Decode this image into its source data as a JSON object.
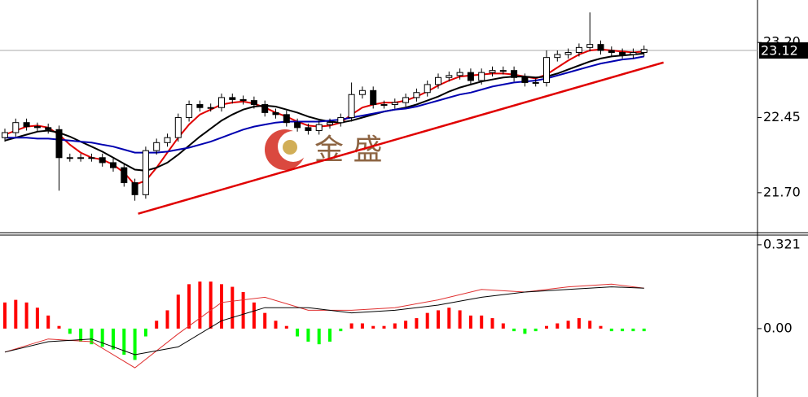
{
  "chart_data": [
    {
      "type": "candlestick",
      "watermark": "金 盛",
      "open": [
        22.25,
        22.3,
        22.4,
        22.36,
        22.35,
        22.33,
        22.05,
        22.05,
        22.05,
        22.05,
        22.0,
        21.95,
        21.8,
        21.68,
        22.12,
        22.2,
        22.25,
        22.45,
        22.58,
        22.55,
        22.55,
        22.65,
        22.63,
        22.62,
        22.58,
        22.5,
        22.48,
        22.4,
        22.35,
        22.32,
        22.38,
        22.4,
        22.45,
        22.68,
        22.72,
        22.58,
        22.58,
        22.6,
        22.65,
        22.7,
        22.78,
        22.85,
        22.87,
        22.9,
        22.82,
        22.9,
        22.92,
        22.92,
        22.85,
        22.8,
        22.8,
        23.05,
        23.08,
        23.1,
        23.15,
        23.18,
        23.12,
        23.1,
        23.08,
        23.1
      ],
      "high": [
        22.34,
        22.44,
        22.44,
        22.4,
        22.39,
        22.37,
        22.09,
        22.09,
        22.09,
        22.09,
        22.04,
        21.99,
        21.84,
        22.16,
        22.24,
        22.29,
        22.49,
        22.62,
        22.62,
        22.59,
        22.69,
        22.69,
        22.67,
        22.66,
        22.62,
        22.54,
        22.52,
        22.44,
        22.39,
        22.42,
        22.44,
        22.49,
        22.8,
        22.76,
        22.76,
        22.62,
        22.64,
        22.69,
        22.74,
        22.82,
        22.89,
        22.91,
        22.94,
        22.94,
        22.94,
        22.96,
        22.96,
        22.96,
        22.89,
        22.84,
        23.12,
        23.12,
        23.14,
        23.19,
        23.5,
        23.22,
        23.16,
        23.14,
        23.14,
        23.17
      ],
      "low": [
        22.21,
        22.26,
        22.32,
        22.31,
        22.29,
        21.72,
        22.01,
        22.01,
        22.01,
        21.96,
        21.91,
        21.76,
        21.62,
        21.64,
        22.08,
        22.16,
        22.21,
        22.41,
        22.51,
        22.51,
        22.51,
        22.59,
        22.58,
        22.54,
        22.46,
        22.44,
        22.36,
        22.31,
        22.28,
        22.28,
        22.34,
        22.36,
        22.41,
        22.64,
        22.54,
        22.54,
        22.54,
        22.56,
        22.61,
        22.66,
        22.74,
        22.81,
        22.83,
        22.78,
        22.78,
        22.86,
        22.88,
        22.81,
        22.76,
        22.76,
        22.76,
        23.01,
        23.04,
        23.06,
        23.11,
        23.08,
        23.06,
        23.04,
        23.04,
        23.06
      ],
      "close": [
        22.3,
        22.4,
        22.36,
        22.35,
        22.33,
        22.05,
        22.05,
        22.05,
        22.05,
        22.0,
        21.95,
        21.8,
        21.68,
        22.12,
        22.2,
        22.25,
        22.45,
        22.58,
        22.55,
        22.55,
        22.65,
        22.63,
        22.62,
        22.58,
        22.5,
        22.48,
        22.4,
        22.35,
        22.32,
        22.38,
        22.4,
        22.45,
        22.68,
        22.72,
        22.58,
        22.58,
        22.6,
        22.65,
        22.7,
        22.78,
        22.85,
        22.87,
        22.9,
        22.82,
        22.9,
        22.92,
        22.92,
        22.85,
        22.8,
        22.8,
        23.05,
        23.08,
        23.1,
        23.15,
        23.18,
        23.12,
        23.1,
        23.08,
        23.1,
        23.13
      ],
      "lines": [
        {
          "color": "#e00000",
          "values": [
            22.28,
            22.32,
            22.36,
            22.37,
            22.35,
            22.28,
            22.18,
            22.1,
            22.05,
            22.03,
            21.98,
            21.9,
            21.78,
            21.82,
            21.95,
            22.1,
            22.25,
            22.38,
            22.48,
            22.53,
            22.58,
            22.6,
            22.61,
            22.59,
            22.55,
            22.5,
            22.46,
            22.41,
            22.37,
            22.36,
            22.37,
            22.4,
            22.48,
            22.55,
            22.58,
            22.6,
            22.6,
            22.62,
            22.66,
            22.71,
            22.77,
            22.82,
            22.86,
            22.87,
            22.88,
            22.89,
            22.89,
            22.88,
            22.86,
            22.84,
            22.88,
            22.95,
            23.02,
            23.08,
            23.12,
            23.13,
            23.12,
            23.11,
            23.1,
            23.11
          ]
        },
        {
          "color": "#000000",
          "values": [
            22.22,
            22.25,
            22.28,
            22.31,
            22.32,
            22.3,
            22.26,
            22.21,
            22.16,
            22.11,
            22.05,
            21.99,
            21.93,
            21.92,
            21.95,
            22.0,
            22.08,
            22.17,
            22.26,
            22.34,
            22.42,
            22.48,
            22.53,
            22.56,
            22.57,
            22.56,
            22.53,
            22.5,
            22.46,
            22.43,
            22.41,
            22.4,
            22.42,
            22.45,
            22.48,
            22.51,
            22.53,
            22.55,
            22.58,
            22.62,
            22.66,
            22.71,
            22.75,
            22.78,
            22.81,
            22.83,
            22.85,
            22.86,
            22.86,
            22.85,
            22.86,
            22.89,
            22.93,
            22.97,
            23.01,
            23.04,
            23.06,
            23.07,
            23.08,
            23.09
          ]
        },
        {
          "color": "#0000b0",
          "values": [
            22.25,
            22.25,
            22.25,
            22.24,
            22.24,
            22.23,
            22.22,
            22.21,
            22.2,
            22.18,
            22.16,
            22.13,
            22.1,
            22.1,
            22.1,
            22.11,
            22.13,
            22.15,
            22.18,
            22.21,
            22.25,
            22.29,
            22.33,
            22.36,
            22.38,
            22.4,
            22.41,
            22.41,
            22.41,
            22.41,
            22.42,
            22.43,
            22.45,
            22.47,
            22.49,
            22.51,
            22.53,
            22.54,
            22.56,
            22.59,
            22.62,
            22.65,
            22.68,
            22.7,
            22.73,
            22.76,
            22.78,
            22.8,
            22.81,
            22.82,
            22.84,
            22.87,
            22.9,
            22.93,
            22.96,
            22.99,
            23.01,
            23.03,
            23.04,
            23.06
          ]
        }
      ],
      "trendline": {
        "color": "#e00000",
        "x": [
          12.3,
          60.8
        ],
        "values": [
          21.49,
          23.0
        ]
      },
      "last_price": 23.12,
      "ylim": [
        21.309,
        23.624
      ],
      "yticks": [
        {
          "value": 21.7,
          "label": "21.70"
        },
        {
          "value": 22.45,
          "label": "22.45"
        },
        {
          "value": 23.2,
          "label": "23.20"
        }
      ]
    },
    {
      "type": "macd",
      "values": [
        0.1,
        0.11,
        0.1,
        0.08,
        0.05,
        0.01,
        -0.02,
        -0.05,
        -0.06,
        -0.07,
        -0.08,
        -0.1,
        -0.12,
        -0.03,
        0.03,
        0.07,
        0.13,
        0.17,
        0.18,
        0.18,
        0.17,
        0.16,
        0.14,
        0.1,
        0.06,
        0.03,
        0.01,
        -0.03,
        -0.05,
        -0.06,
        -0.05,
        -0.01,
        0.02,
        0.02,
        0.01,
        0.01,
        0.02,
        0.03,
        0.04,
        0.06,
        0.07,
        0.08,
        0.07,
        0.05,
        0.05,
        0.04,
        0.02,
        -0.01,
        -0.02,
        -0.01,
        0.01,
        0.02,
        0.03,
        0.04,
        0.03,
        0.01,
        -0.01,
        -0.01,
        -0.01,
        -0.01
      ],
      "up_color": "#ff0000",
      "down_color": "#00ff00",
      "lines": [
        {
          "color": "#e03030",
          "x": [
            0,
            4,
            8,
            12,
            16,
            20,
            24,
            28,
            32,
            36,
            40,
            44,
            48,
            52,
            56,
            59
          ],
          "values": [
            -0.09,
            -0.04,
            -0.05,
            -0.15,
            -0.02,
            0.1,
            0.12,
            0.07,
            0.07,
            0.08,
            0.11,
            0.15,
            0.14,
            0.16,
            0.17,
            0.155
          ]
        },
        {
          "color": "#000000",
          "x": [
            0,
            4,
            8,
            12,
            16,
            20,
            24,
            28,
            32,
            36,
            40,
            44,
            48,
            52,
            56,
            59
          ],
          "values": [
            -0.09,
            -0.05,
            -0.04,
            -0.1,
            -0.07,
            0.03,
            0.08,
            0.08,
            0.06,
            0.07,
            0.09,
            0.12,
            0.14,
            0.15,
            0.16,
            0.155
          ]
        }
      ],
      "ylim": [
        -0.262,
        0.358
      ],
      "yticks": [
        {
          "value": 0,
          "label": "0.00"
        },
        0.321
      ]
    }
  ]
}
